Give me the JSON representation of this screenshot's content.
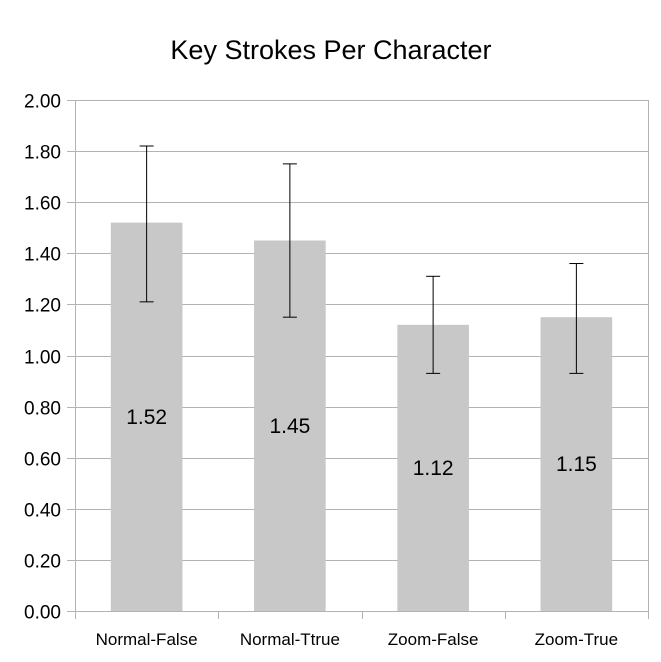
{
  "chart_data": {
    "type": "bar",
    "title": "Key Strokes Per Character",
    "xlabel": "",
    "ylabel": "",
    "categories": [
      "Normal-False",
      "Normal-Ttrue",
      "Zoom-False",
      "Zoom-True"
    ],
    "values": [
      1.52,
      1.45,
      1.12,
      1.15
    ],
    "data_labels": [
      "1.52",
      "1.45",
      "1.12",
      "1.15"
    ],
    "error_bars": {
      "lower": [
        1.21,
        1.15,
        0.93,
        0.93
      ],
      "upper": [
        1.82,
        1.75,
        1.31,
        1.36
      ]
    },
    "ylim": [
      0,
      2
    ],
    "yticks": [
      0,
      0.2,
      0.4,
      0.6,
      0.8,
      1.0,
      1.2,
      1.4,
      1.6,
      1.8,
      2.0
    ],
    "ytick_labels": [
      "0.00",
      "0.20",
      "0.40",
      "0.60",
      "0.80",
      "1.00",
      "1.20",
      "1.40",
      "1.60",
      "1.80",
      "2.00"
    ],
    "grid": true,
    "legend": "none",
    "colors": {
      "bar": "#c8c8c8",
      "grid": "#b3b3b3",
      "axis": "#b3b3b3",
      "error_bar": "#000000",
      "text": "#000000"
    }
  }
}
